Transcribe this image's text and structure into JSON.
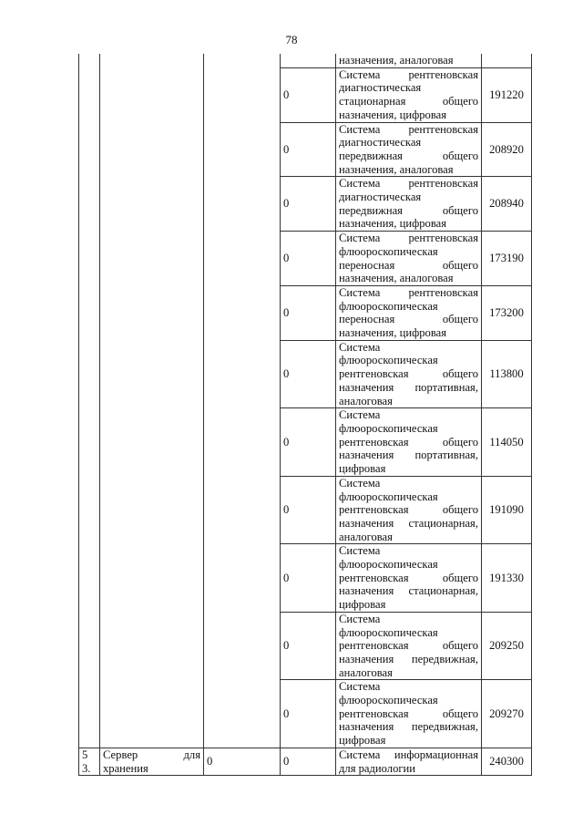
{
  "page_number": "78",
  "rows": [
    {
      "code": "",
      "lines": [
        "назначения, аналоговая"
      ],
      "price": ""
    },
    {
      "code": "0",
      "lines": [
        "Система рентгеновская",
        "диагностическая",
        "стационарная общего",
        "назначения, цифровая"
      ],
      "price": "191220"
    },
    {
      "code": "0",
      "lines": [
        "Система рентгеновская",
        "диагностическая",
        "передвижная общего",
        "назначения, аналоговая"
      ],
      "price": "208920"
    },
    {
      "code": "0",
      "lines": [
        "Система рентгеновская",
        "диагностическая",
        "передвижная общего",
        "назначения, цифровая"
      ],
      "price": "208940"
    },
    {
      "code": "0",
      "lines": [
        "Система рентгеновская",
        "флюороскопическая",
        "переносная общего",
        "назначения, аналоговая"
      ],
      "price": "173190"
    },
    {
      "code": "0",
      "lines": [
        "Система рентгеновская",
        "флюороскопическая",
        "переносная общего",
        "назначения, цифровая"
      ],
      "price": "173200"
    },
    {
      "code": "0",
      "lines": [
        "Система",
        "флюороскопическая",
        "рентгеновская общего",
        "назначения портативная,",
        "аналоговая"
      ],
      "price": "113800"
    },
    {
      "code": "0",
      "lines": [
        "Система",
        "флюороскопическая",
        "рентгеновская общего",
        "назначения портативная,",
        "цифровая"
      ],
      "price": "114050"
    },
    {
      "code": "0",
      "lines": [
        "Система",
        "флюороскопическая",
        "рентгеновская общего",
        "назначения стационарная,",
        "аналоговая"
      ],
      "price": "191090"
    },
    {
      "code": "0",
      "lines": [
        "Система",
        "флюороскопическая",
        "рентгеновская общего",
        "назначения стационарная,",
        "цифровая"
      ],
      "price": "191330"
    },
    {
      "code": "0",
      "lines": [
        "Система",
        "флюороскопическая",
        "рентгеновская общего",
        "назначения передвижная,",
        "аналоговая"
      ],
      "price": "209250"
    },
    {
      "code": "0",
      "lines": [
        "Система",
        "флюороскопическая",
        "рентгеновская общего",
        "назначения передвижная,",
        "цифровая"
      ],
      "price": "209270"
    }
  ],
  "last_row": {
    "num_lines": [
      "5",
      "3."
    ],
    "name_lines": [
      "Сервер для",
      "хранения"
    ],
    "col3": "0",
    "code": "0",
    "lines": [
      "Система информационная",
      "для радиологии"
    ],
    "price": "240300"
  }
}
